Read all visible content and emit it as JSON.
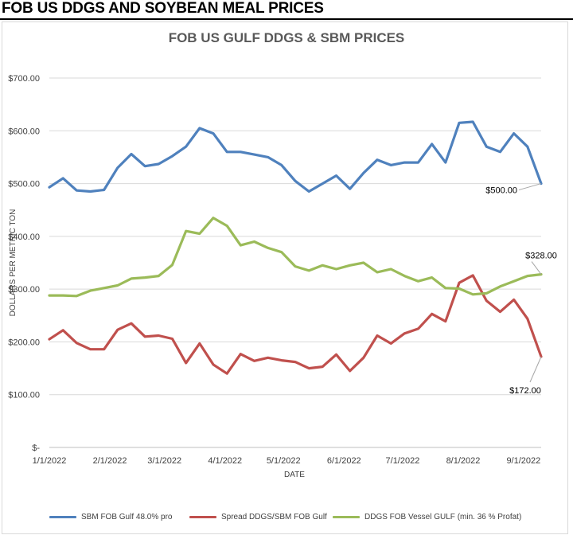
{
  "page": {
    "heading": "FOB US DDGS AND SOYBEAN MEAL PRICES"
  },
  "chart_data": {
    "type": "line",
    "title": "FOB US GULF DDGS & SBM PRICES",
    "xlabel": "DATE",
    "ylabel": "DOLLARS PER METRIC TON",
    "ylim": [
      0,
      700
    ],
    "y_ticks": [
      "$-",
      "$100.00",
      "$200.00",
      "$300.00",
      "$400.00",
      "$500.00",
      "$600.00",
      "$700.00"
    ],
    "y_tick_values": [
      0,
      100,
      200,
      300,
      400,
      500,
      600,
      700
    ],
    "x_ticks": [
      "1/1/2022",
      "2/1/2022",
      "3/1/2022",
      "4/1/2022",
      "5/1/2022",
      "6/1/2022",
      "7/1/2022",
      "8/1/2022",
      "9/1/2022"
    ],
    "x_tick_index": [
      0,
      4.43,
      8.43,
      12.86,
      17.14,
      21.57,
      25.86,
      30.29,
      34.71
    ],
    "grid": true,
    "legend_position": "bottom",
    "series": [
      {
        "name": "SBM FOB Gulf 48.0% pro",
        "color": "#4f81bd",
        "values": [
          493,
          510,
          487,
          485,
          488,
          530,
          556,
          533,
          537,
          552,
          570,
          605,
          595,
          560,
          560,
          555,
          550,
          535,
          505,
          485,
          500,
          515,
          490,
          520,
          545,
          535,
          540,
          540,
          575,
          540,
          615,
          617,
          570,
          560,
          595,
          570,
          500
        ]
      },
      {
        "name": "Spread DDGS/SBM FOB Gulf",
        "color": "#c0504d",
        "values": [
          205,
          222,
          198,
          186,
          186,
          223,
          235,
          210,
          212,
          206,
          160,
          197,
          157,
          140,
          177,
          164,
          170,
          165,
          162,
          150,
          153,
          176,
          145,
          170,
          212,
          197,
          216,
          225,
          253,
          239,
          312,
          326,
          278,
          257,
          280,
          244,
          172
        ]
      },
      {
        "name": "DDGS FOB Vessel GULF  (min. 36 % Profat)",
        "color": "#9bbb59",
        "values": [
          288,
          288,
          287,
          297,
          302,
          307,
          320,
          322,
          325,
          346,
          410,
          405,
          435,
          420,
          383,
          390,
          378,
          370,
          343,
          335,
          345,
          338,
          345,
          350,
          332,
          338,
          325,
          315,
          322,
          302,
          301,
          290,
          292,
          305,
          315,
          325,
          328
        ]
      }
    ],
    "annotations": [
      {
        "label": "$500.00",
        "series": 0
      },
      {
        "label": "$328.00",
        "series": 2
      },
      {
        "label": "$172.00",
        "series": 1
      }
    ]
  }
}
